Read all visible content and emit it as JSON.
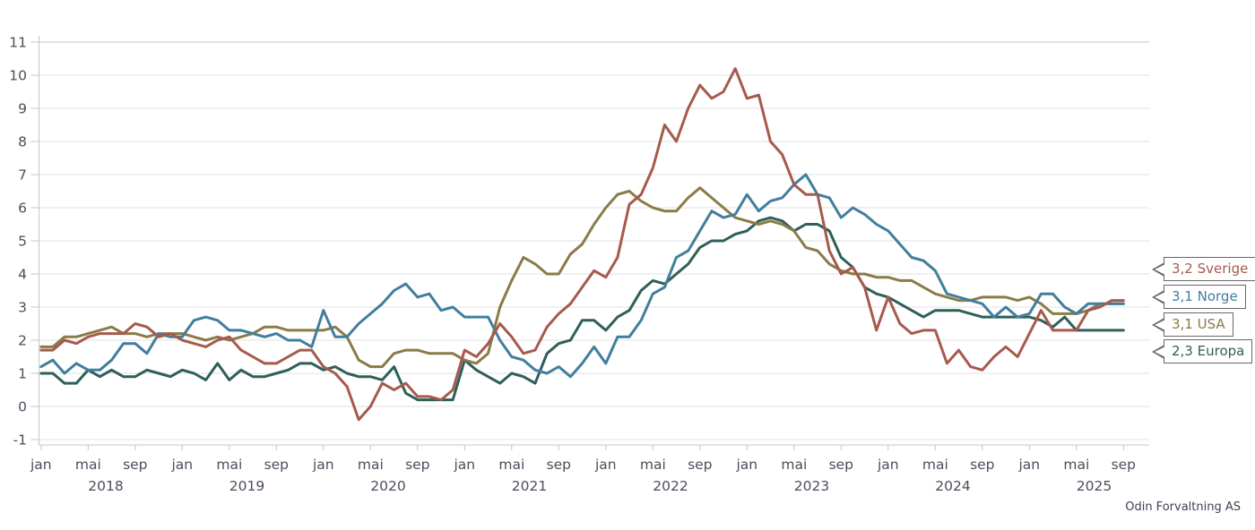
{
  "chart_data": {
    "type": "line",
    "title": "",
    "xlabel": "",
    "ylabel": "",
    "x_range": [
      "2018-01",
      "2025-09"
    ],
    "frequency": "monthly",
    "ylim": [
      -1,
      11
    ],
    "grid": true,
    "legend_position": "right-callouts",
    "y_ticks": [
      -1,
      0,
      1,
      2,
      3,
      4,
      5,
      6,
      7,
      8,
      9,
      10,
      11
    ],
    "month_tick_labels": [
      "jan",
      "mai",
      "sep"
    ],
    "year_labels": [
      "2018",
      "2019",
      "2020",
      "2021",
      "2022",
      "2023",
      "2024",
      "2025"
    ],
    "series": [
      {
        "name": "Sverige",
        "color": "#a55a4c",
        "end_label": "3,2 Sverige",
        "end_value": "3,2",
        "values": [
          1.7,
          1.7,
          2.0,
          1.9,
          2.1,
          2.2,
          2.2,
          2.2,
          2.5,
          2.4,
          2.1,
          2.2,
          2.0,
          1.9,
          1.8,
          2.0,
          2.1,
          1.7,
          1.5,
          1.3,
          1.3,
          1.5,
          1.7,
          1.7,
          1.2,
          1.0,
          0.6,
          -0.4,
          0.0,
          0.7,
          0.5,
          0.7,
          0.3,
          0.3,
          0.2,
          0.5,
          1.7,
          1.5,
          1.9,
          2.5,
          2.1,
          1.6,
          1.7,
          2.4,
          2.8,
          3.1,
          3.6,
          4.1,
          3.9,
          4.5,
          6.1,
          6.4,
          7.2,
          8.5,
          8.0,
          9.0,
          9.7,
          9.3,
          9.5,
          10.2,
          9.3,
          9.4,
          8.0,
          7.6,
          6.7,
          6.4,
          6.4,
          4.7,
          4.0,
          4.2,
          3.6,
          2.3,
          3.3,
          2.5,
          2.2,
          2.3,
          2.3,
          1.3,
          1.7,
          1.2,
          1.1,
          1.5,
          1.8,
          1.5,
          2.2,
          2.9,
          2.3,
          2.3,
          2.3,
          2.9,
          3.0,
          3.2,
          3.2
        ]
      },
      {
        "name": "Norge",
        "color": "#417e9e",
        "end_label": "3,1 Norge",
        "end_value": "3,1",
        "values": [
          1.2,
          1.4,
          1.0,
          1.3,
          1.1,
          1.1,
          1.4,
          1.9,
          1.9,
          1.6,
          2.2,
          2.1,
          2.1,
          2.6,
          2.7,
          2.6,
          2.3,
          2.3,
          2.2,
          2.1,
          2.2,
          2.0,
          2.0,
          1.8,
          2.9,
          2.1,
          2.1,
          2.5,
          2.8,
          3.1,
          3.5,
          3.7,
          3.3,
          3.4,
          2.9,
          3.0,
          2.7,
          2.7,
          2.7,
          2.0,
          1.5,
          1.4,
          1.1,
          1.0,
          1.2,
          0.9,
          1.3,
          1.8,
          1.3,
          2.1,
          2.1,
          2.6,
          3.4,
          3.6,
          4.5,
          4.7,
          5.3,
          5.9,
          5.7,
          5.8,
          6.4,
          5.9,
          6.2,
          6.3,
          6.7,
          7.0,
          6.4,
          6.3,
          5.7,
          6.0,
          5.8,
          5.5,
          5.3,
          4.9,
          4.5,
          4.4,
          4.1,
          3.4,
          3.3,
          3.2,
          3.1,
          2.7,
          3.0,
          2.7,
          2.8,
          3.4,
          3.4,
          3.0,
          2.8,
          3.1,
          3.1,
          3.1,
          3.1
        ]
      },
      {
        "name": "USA",
        "color": "#8b7b47",
        "end_label": "3,1 USA",
        "end_value": "3,1",
        "values": [
          1.8,
          1.8,
          2.1,
          2.1,
          2.2,
          2.3,
          2.4,
          2.2,
          2.2,
          2.1,
          2.2,
          2.2,
          2.2,
          2.1,
          2.0,
          2.1,
          2.0,
          2.1,
          2.2,
          2.4,
          2.4,
          2.3,
          2.3,
          2.3,
          2.3,
          2.4,
          2.1,
          1.4,
          1.2,
          1.2,
          1.6,
          1.7,
          1.7,
          1.6,
          1.6,
          1.6,
          1.4,
          1.3,
          1.6,
          3.0,
          3.8,
          4.5,
          4.3,
          4.0,
          4.0,
          4.6,
          4.9,
          5.5,
          6.0,
          6.4,
          6.5,
          6.2,
          6.0,
          5.9,
          5.9,
          6.3,
          6.6,
          6.3,
          6.0,
          5.7,
          5.6,
          5.5,
          5.6,
          5.5,
          5.3,
          4.8,
          4.7,
          4.3,
          4.1,
          4.0,
          4.0,
          3.9,
          3.9,
          3.8,
          3.8,
          3.6,
          3.4,
          3.3,
          3.2,
          3.2,
          3.3,
          3.3,
          3.3,
          3.2,
          3.3,
          3.1,
          2.8,
          2.8,
          2.8,
          2.9,
          3.1,
          3.1,
          3.1
        ]
      },
      {
        "name": "Europa",
        "color": "#2e5f59",
        "end_label": "2,3 Europa",
        "end_value": "2,3",
        "values": [
          1.0,
          1.0,
          0.7,
          0.7,
          1.1,
          0.9,
          1.1,
          0.9,
          0.9,
          1.1,
          1.0,
          0.9,
          1.1,
          1.0,
          0.8,
          1.3,
          0.8,
          1.1,
          0.9,
          0.9,
          1.0,
          1.1,
          1.3,
          1.3,
          1.1,
          1.2,
          1.0,
          0.9,
          0.9,
          0.8,
          1.2,
          0.4,
          0.2,
          0.2,
          0.2,
          0.2,
          1.4,
          1.1,
          0.9,
          0.7,
          1.0,
          0.9,
          0.7,
          1.6,
          1.9,
          2.0,
          2.6,
          2.6,
          2.3,
          2.7,
          2.9,
          3.5,
          3.8,
          3.7,
          4.0,
          4.3,
          4.8,
          5.0,
          5.0,
          5.2,
          5.3,
          5.6,
          5.7,
          5.6,
          5.3,
          5.5,
          5.5,
          5.3,
          4.5,
          4.2,
          3.6,
          3.4,
          3.3,
          3.1,
          2.9,
          2.7,
          2.9,
          2.9,
          2.9,
          2.8,
          2.7,
          2.7,
          2.7,
          2.7,
          2.7,
          2.6,
          2.4,
          2.7,
          2.3,
          2.3,
          2.3,
          2.3,
          2.3
        ]
      }
    ]
  },
  "attribution": "Odin Forvaltning AS",
  "colors": {
    "grid": "#e1e1e1",
    "grid_top": "#c3c7cf",
    "axis": "#c5c5c5",
    "tick_label": "#4d4d5e"
  }
}
